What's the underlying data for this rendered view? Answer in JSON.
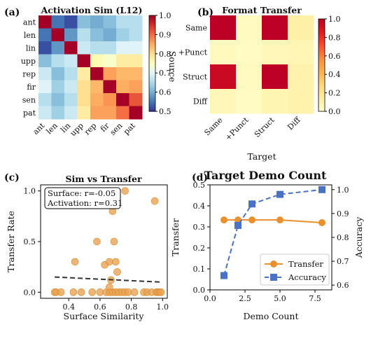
{
  "chart_data": [
    {
      "panel_label": "(a)",
      "type": "heatmap",
      "title": "Activation Sim (L12)",
      "ylabel": "Source",
      "rows": [
        "ant",
        "len",
        "lin",
        "upp",
        "rep",
        "fir",
        "sen",
        "pat"
      ],
      "cols": [
        "ant",
        "len",
        "lin",
        "upp",
        "rep",
        "fir",
        "sen",
        "pat"
      ],
      "values": [
        [
          1.0,
          0.55,
          0.52,
          0.62,
          0.6,
          0.62,
          0.66,
          0.66
        ],
        [
          0.55,
          1.0,
          0.58,
          0.66,
          0.62,
          0.6,
          0.64,
          0.66
        ],
        [
          0.52,
          0.58,
          1.0,
          0.68,
          0.66,
          0.66,
          0.7,
          0.7
        ],
        [
          0.62,
          0.66,
          0.68,
          1.0,
          0.76,
          0.74,
          0.78,
          0.78
        ],
        [
          0.68,
          0.62,
          0.66,
          0.78,
          1.0,
          0.86,
          0.84,
          0.84
        ],
        [
          0.7,
          0.64,
          0.68,
          0.8,
          0.84,
          1.0,
          0.85,
          0.86
        ],
        [
          0.66,
          0.62,
          0.66,
          0.8,
          0.85,
          0.87,
          1.0,
          0.92
        ],
        [
          0.68,
          0.64,
          0.68,
          0.78,
          0.86,
          0.86,
          0.9,
          1.0
        ]
      ],
      "colorbar": {
        "colormap": "RdYlBu_r",
        "range": [
          0.5,
          1.0
        ],
        "ticks": [
          "0.5",
          "0.6",
          "0.7",
          "0.8",
          "0.9",
          "1.0"
        ]
      }
    },
    {
      "panel_label": "(b)",
      "type": "heatmap",
      "title": "Format Transfer",
      "xlabel": "Target",
      "rows": [
        "Same",
        "+Punct",
        "Struct",
        "Diff"
      ],
      "cols": [
        "Same",
        "+Punct",
        "Struct",
        "Diff"
      ],
      "values": [
        [
          1.0,
          0.04,
          1.0,
          0.12
        ],
        [
          0.05,
          0.03,
          0.06,
          0.07
        ],
        [
          0.95,
          0.04,
          1.0,
          0.1
        ],
        [
          0.06,
          0.03,
          0.08,
          0.1
        ]
      ],
      "colorbar": {
        "colormap": "YlOrRd",
        "range": [
          0.0,
          1.0
        ],
        "ticks": [
          "0.0",
          "0.2",
          "0.4",
          "0.6",
          "0.8",
          "1.0"
        ]
      }
    },
    {
      "panel_label": "(c)",
      "type": "scatter",
      "title": "Sim vs Transfer",
      "xlabel": "Surface Similarity",
      "ylabel": "Transfer Rate",
      "xlim": [
        0.22,
        1.03
      ],
      "ylim": [
        -0.06,
        1.06
      ],
      "xticks": [
        "0.4",
        "0.6",
        "0.8",
        "1.0"
      ],
      "yticks": [
        "0.0",
        "0.5",
        "1.0"
      ],
      "points": [
        [
          0.31,
          0
        ],
        [
          0.32,
          0
        ],
        [
          0.35,
          0
        ],
        [
          0.43,
          0
        ],
        [
          0.48,
          0
        ],
        [
          0.55,
          0
        ],
        [
          0.6,
          0
        ],
        [
          0.64,
          0
        ],
        [
          0.66,
          0
        ],
        [
          0.68,
          0
        ],
        [
          0.7,
          0
        ],
        [
          0.72,
          0
        ],
        [
          0.74,
          0
        ],
        [
          0.76,
          0
        ],
        [
          0.78,
          0
        ],
        [
          0.82,
          0
        ],
        [
          0.88,
          0
        ],
        [
          0.9,
          0
        ],
        [
          0.93,
          0
        ],
        [
          0.96,
          0
        ],
        [
          0.97,
          0
        ],
        [
          0.98,
          0
        ],
        [
          0.99,
          0
        ],
        [
          0.44,
          0.3
        ],
        [
          0.58,
          0.5
        ],
        [
          0.63,
          0.27
        ],
        [
          0.66,
          0.05
        ],
        [
          0.66,
          0.3
        ],
        [
          0.67,
          0.12
        ],
        [
          0.68,
          0.8
        ],
        [
          0.69,
          0.5
        ],
        [
          0.7,
          0.3
        ],
        [
          0.71,
          0.2
        ],
        [
          0.66,
          1.0
        ],
        [
          0.76,
          1.0
        ],
        [
          0.95,
          0.9
        ]
      ],
      "trend_line": {
        "x": [
          0.31,
          0.99
        ],
        "y": [
          0.15,
          0.1
        ]
      },
      "annotation": [
        "Surface: r=-0.05",
        "Activation: r=0.31"
      ]
    },
    {
      "panel_label": "(d)",
      "type": "line",
      "title": "Target Demo Count",
      "xlabel": "Demo Count",
      "ylabel": "Transfer",
      "y2label": "Accuracy",
      "xlim": [
        0.0,
        8.7
      ],
      "ylim": [
        0.0,
        0.5
      ],
      "y2lim": [
        0.58,
        1.02
      ],
      "xticks": [
        "0.0",
        "2.5",
        "5.0",
        "7.5"
      ],
      "yticks": [
        "0.0",
        "0.1",
        "0.2",
        "0.3",
        "0.4",
        "0.5"
      ],
      "y2ticks": [
        "0.6",
        "0.7",
        "0.8",
        "0.9",
        "1.0"
      ],
      "series": [
        {
          "name": "Transfer",
          "axis": "left",
          "x": [
            1,
            2,
            3,
            5,
            8
          ],
          "values": [
            0.333,
            0.333,
            0.333,
            0.333,
            0.32
          ],
          "color": "#e8912d",
          "marker": "circle",
          "style": "solid"
        },
        {
          "name": "Accuracy",
          "axis": "right",
          "x": [
            1,
            2,
            3,
            5,
            8
          ],
          "values": [
            0.64,
            0.85,
            0.94,
            0.98,
            1.0
          ],
          "color": "#4a72c4",
          "marker": "square",
          "style": "dashed"
        }
      ],
      "legend": "lower-right"
    }
  ]
}
